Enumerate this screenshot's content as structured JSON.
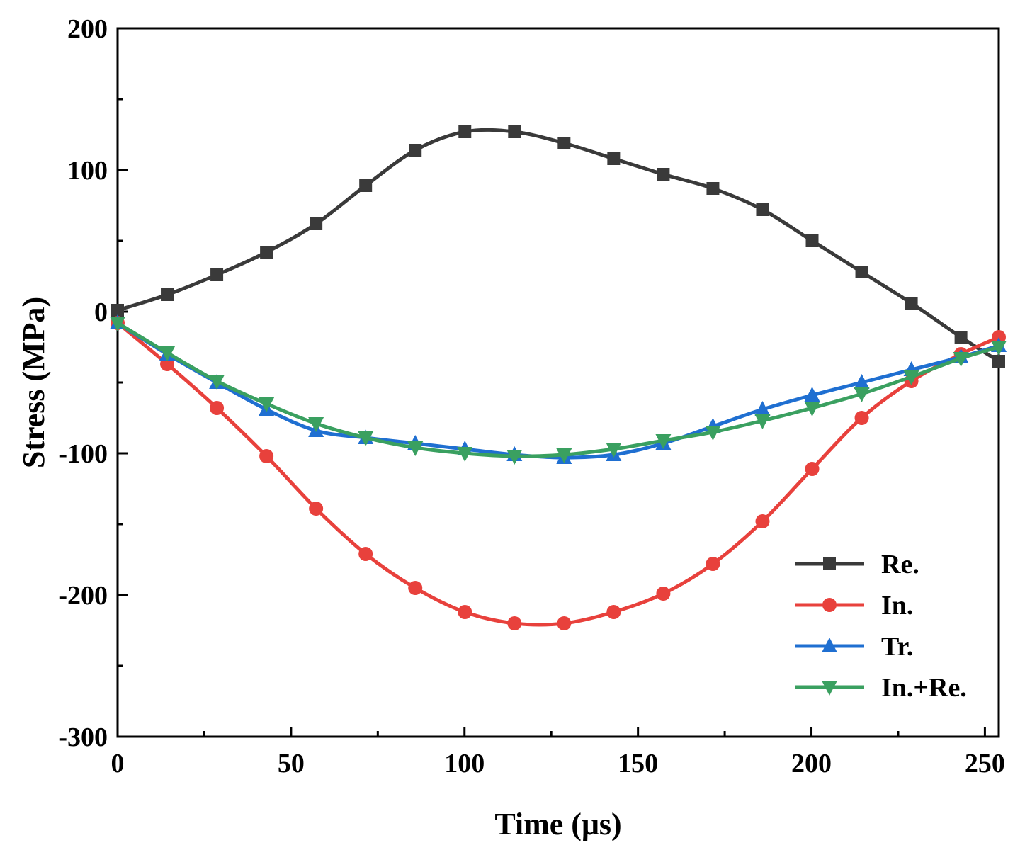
{
  "chart_data": {
    "type": "line",
    "xlabel": "Time (μs)",
    "ylabel": "Stress (MPa)",
    "xlim": [
      0,
      254
    ],
    "ylim": [
      -300,
      200
    ],
    "xticks": [
      0,
      50,
      100,
      150,
      200,
      250
    ],
    "xtick_labels": [
      "0",
      "50",
      "100",
      "150",
      "200",
      "250"
    ],
    "yticks": [
      200,
      100,
      0,
      -100,
      -200,
      -300
    ],
    "ytick_labels": [
      "200",
      "100",
      "0",
      "-100",
      "-200",
      "-300"
    ],
    "grid": false,
    "legend_position": "bottom-right",
    "x": [
      0,
      14.3,
      28.6,
      42.9,
      57.2,
      71.5,
      85.8,
      100.1,
      114.4,
      128.7,
      143,
      157.3,
      171.6,
      185.9,
      200.2,
      214.5,
      228.8,
      243.1,
      254
    ],
    "series": [
      {
        "name": "Re.",
        "color": "#3a3a3a",
        "marker": "square",
        "values": [
          1,
          12,
          26,
          42,
          62,
          89,
          114,
          127,
          127,
          119,
          108,
          97,
          87,
          72,
          50,
          28,
          6,
          -18,
          -35
        ]
      },
      {
        "name": "In.",
        "color": "#e8413c",
        "marker": "circle",
        "values": [
          -8,
          -37,
          -68,
          -102,
          -139,
          -171,
          -195,
          -212,
          -220,
          -220,
          -212,
          -199,
          -178,
          -148,
          -111,
          -75,
          -49,
          -30,
          -18
        ]
      },
      {
        "name": "Tr.",
        "color": "#1f6fd1",
        "marker": "triangle-up",
        "values": [
          -8,
          -30,
          -50,
          -69,
          -84,
          -89,
          -93,
          -97,
          -101,
          -103,
          -101,
          -93,
          -81,
          -69,
          -59,
          -50,
          -41,
          -32,
          -24
        ]
      },
      {
        "name": "In.+Re.",
        "color": "#3aa060",
        "marker": "triangle-down",
        "values": [
          -8,
          -29,
          -49,
          -65,
          -79,
          -89,
          -96,
          -100,
          -102,
          -101,
          -97,
          -91,
          -85,
          -77,
          -68,
          -58,
          -46,
          -33,
          -25
        ]
      }
    ]
  }
}
